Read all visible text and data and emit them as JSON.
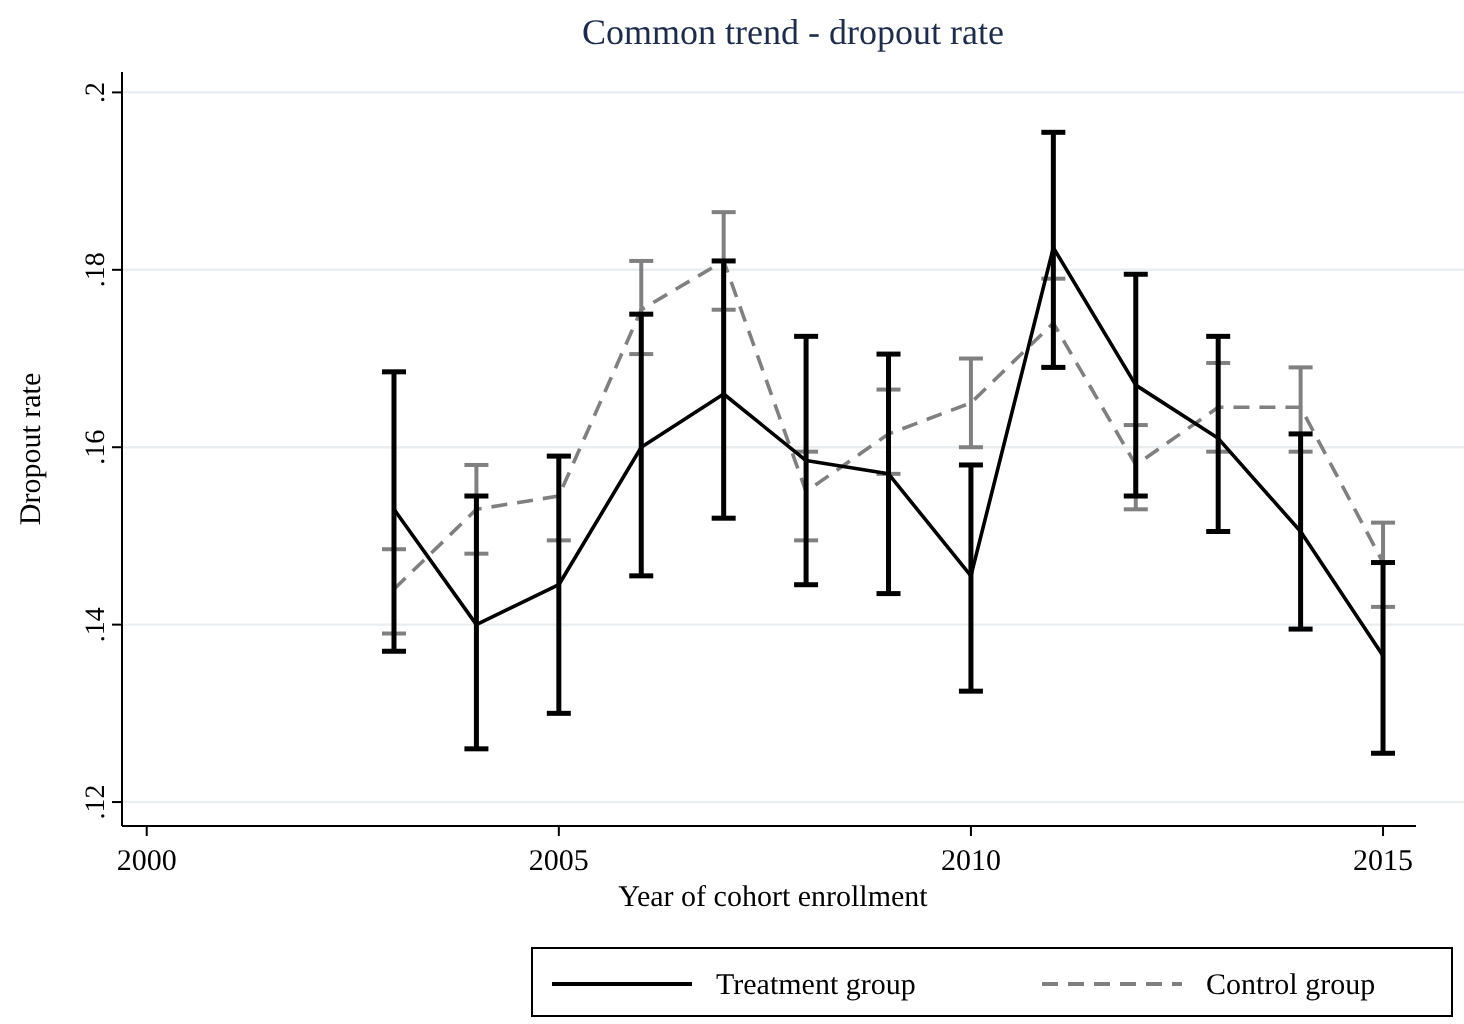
{
  "chart_data": {
    "type": "line",
    "title": "Common trend - dropout rate",
    "xlabel": "Year of cohort enrollment",
    "ylabel": "Dropout rate",
    "x": [
      2003,
      2004,
      2005,
      2006,
      2007,
      2008,
      2009,
      2010,
      2011,
      2012,
      2013,
      2014,
      2015
    ],
    "series": [
      {
        "name": "Treatment group",
        "color": "#000000",
        "line_style": "solid",
        "values": [
          0.153,
          0.14,
          0.1445,
          0.16,
          0.166,
          0.1585,
          0.157,
          0.1455,
          0.1825,
          0.167,
          0.161,
          0.1505,
          0.1365
        ],
        "errors": [
          [
            0.137,
            0.1685
          ],
          [
            0.126,
            0.1545
          ],
          [
            0.13,
            0.159
          ],
          [
            0.1455,
            0.175
          ],
          [
            0.152,
            0.181
          ],
          [
            0.1445,
            0.1725
          ],
          [
            0.1435,
            0.1705
          ],
          [
            0.1325,
            0.158
          ],
          [
            0.169,
            0.1955
          ],
          [
            0.1545,
            0.1795
          ],
          [
            0.1505,
            0.1725
          ],
          [
            0.1395,
            0.1615
          ],
          [
            0.1255,
            0.147
          ]
        ]
      },
      {
        "name": "Control group",
        "color": "#808080",
        "line_style": "dashed",
        "values": [
          0.144,
          0.153,
          0.1545,
          0.1755,
          0.181,
          0.155,
          0.1615,
          0.165,
          0.174,
          0.158,
          0.1645,
          0.1645,
          0.147
        ],
        "errors": [
          [
            0.139,
            0.1485
          ],
          [
            0.148,
            0.158
          ],
          [
            0.1495,
            0.159
          ],
          [
            0.1705,
            0.181
          ],
          [
            0.1755,
            0.1865
          ],
          [
            0.1495,
            0.1595
          ],
          [
            0.157,
            0.1665
          ],
          [
            0.16,
            0.17
          ],
          [
            0.169,
            0.179
          ],
          [
            0.153,
            0.1625
          ],
          [
            0.1595,
            0.1695
          ],
          [
            0.1595,
            0.169
          ],
          [
            0.142,
            0.1515
          ]
        ]
      }
    ],
    "xlim": [
      1999.7,
      2015.4
    ],
    "xticks": [
      2000,
      2005,
      2010,
      2015
    ],
    "ylim": [
      0.1173,
      0.2023
    ],
    "yticks": [
      {
        "value": 0.12,
        "label": ".12"
      },
      {
        "value": 0.14,
        "label": ".14"
      },
      {
        "value": 0.16,
        "label": ".16"
      },
      {
        "value": 0.18,
        "label": ".18"
      },
      {
        "value": 0.2,
        "label": ".2"
      }
    ],
    "grid": "y",
    "legend": "bottom",
    "marker": "none"
  }
}
